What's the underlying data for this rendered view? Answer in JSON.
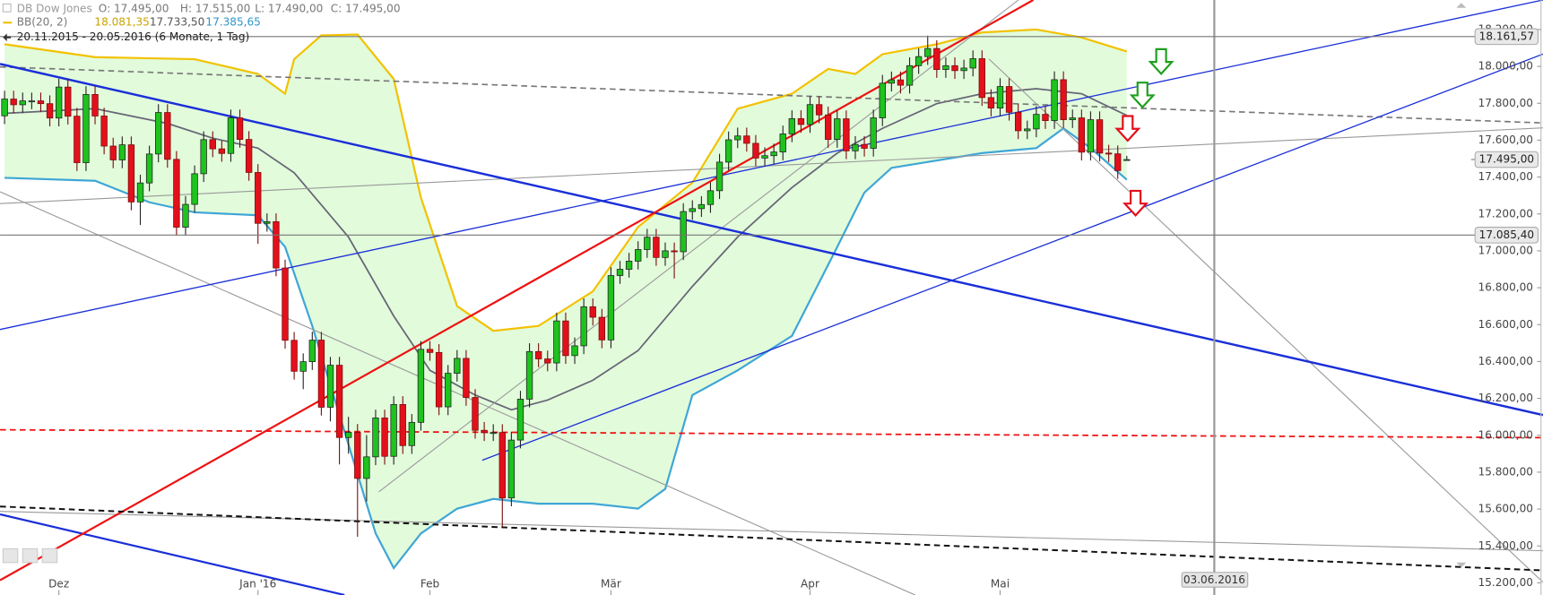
{
  "header": {
    "instrument": "DB Dow Jones",
    "open": "O: 17.495,00",
    "high": "H: 17.515,00",
    "low": "L: 17.490,00",
    "close": "C: 17.495,00",
    "indicator": "BB(20, 2)",
    "bb_upper": "18.081,35",
    "bb_middle": "17.733,50",
    "bb_lower": "17.385,65",
    "range": "20.11.2015 - 20.05.2016 (6 Monate, 1 Tag)"
  },
  "chart_data": {
    "type": "candlestick",
    "categories": [
      null,
      null,
      null,
      null,
      null,
      null,
      "Dez",
      null,
      null,
      null,
      null,
      null,
      null,
      null,
      null,
      null,
      null,
      null,
      null,
      null,
      null,
      null,
      null,
      null,
      null,
      null,
      null,
      null,
      "Jan '16",
      null,
      null,
      null,
      null,
      null,
      null,
      null,
      null,
      null,
      null,
      null,
      null,
      null,
      null,
      null,
      null,
      null,
      null,
      "Feb",
      null,
      null,
      null,
      null,
      null,
      null,
      null,
      null,
      null,
      null,
      null,
      null,
      null,
      null,
      null,
      null,
      null,
      null,
      null,
      "Mär",
      null,
      null,
      null,
      null,
      null,
      null,
      null,
      null,
      null,
      null,
      null,
      null,
      null,
      null,
      null,
      null,
      null,
      null,
      null,
      null,
      null,
      "Apr",
      null,
      null,
      null,
      null,
      null,
      null,
      null,
      null,
      null,
      null,
      null,
      null,
      null,
      null,
      null,
      null,
      null,
      null,
      null,
      null,
      "Mai",
      null,
      null,
      null,
      null,
      null,
      null,
      null,
      null,
      null,
      null,
      null,
      null,
      null,
      null
    ],
    "open": [
      17732,
      17823,
      17792,
      17813,
      17813,
      17798,
      17720,
      17888,
      17730,
      17478,
      17848,
      17731,
      17568,
      17493,
      17575,
      17265,
      17368,
      17525,
      17750,
      17496,
      17128,
      17252,
      17418,
      17603,
      17553,
      17528,
      17721,
      17604,
      17425,
      17149,
      17158,
      16907,
      16515,
      16347,
      16399,
      16516,
      16152,
      16380,
      15988,
      16016,
      15766,
      15883,
      16094,
      15886,
      16167,
      15944,
      16070,
      16466,
      16449,
      16154,
      16336,
      16417,
      16205,
      16027,
      16014,
      16015,
      15660,
      15974,
      16196,
      16454,
      16414,
      16392,
      16620,
      16432,
      16485,
      16697,
      16640,
      16517,
      16866,
      16900,
      16944,
      17007,
      17074,
      16964,
      17000,
      16995,
      17213,
      17229,
      17251,
      17326,
      17481,
      17602,
      17623,
      17583,
      17503,
      17516,
      17536,
      17634,
      17717,
      17685,
      17793,
      17737,
      17604,
      17716,
      17542,
      17577,
      17556,
      17721,
      17909,
      17927,
      17898,
      18004,
      18053,
      18097,
      17983,
      18004,
      17977,
      17991,
      18042,
      17831,
      17774,
      17891,
      17751,
      17651,
      17661,
      17740,
      17706,
      17928,
      17711,
      17721,
      17535,
      17711,
      17530,
      17526,
      17495
    ],
    "high": [
      17868,
      17868,
      17858,
      17858,
      17858,
      17843,
      17933,
      17933,
      17775,
      17893,
      17893,
      17776,
      17613,
      17620,
      17620,
      17413,
      17570,
      17795,
      17795,
      17541,
      17297,
      17463,
      17648,
      17648,
      17598,
      17766,
      17766,
      17649,
      17470,
      17203,
      17203,
      16952,
      16560,
      16444,
      16561,
      16561,
      16425,
      16425,
      16100,
      16061,
      16001,
      16139,
      16139,
      16212,
      16212,
      16115,
      16511,
      16511,
      16494,
      16381,
      16462,
      16462,
      16250,
      16072,
      16060,
      16060,
      16019,
      16241,
      16499,
      16499,
      16459,
      16665,
      16665,
      16530,
      16742,
      16742,
      16685,
      16911,
      16945,
      16989,
      17052,
      17119,
      17119,
      17045,
      17045,
      17258,
      17274,
      17296,
      17371,
      17526,
      17647,
      17668,
      17668,
      17628,
      17561,
      17581,
      17679,
      17762,
      17762,
      17838,
      17838,
      17782,
      17761,
      17761,
      17622,
      17622,
      17766,
      17954,
      17972,
      17972,
      18049,
      18098,
      18167,
      18142,
      18049,
      18049,
      18036,
      18087,
      18087,
      17876,
      17936,
      17936,
      17796,
      17706,
      17785,
      17785,
      17973,
      17973,
      17766,
      17766,
      17756,
      17756,
      17575,
      17571,
      17515
    ],
    "low": [
      17687,
      17747,
      17747,
      17768,
      17753,
      17675,
      17675,
      17685,
      17433,
      17433,
      17686,
      17523,
      17448,
      17448,
      17220,
      17140,
      17323,
      17480,
      17451,
      17083,
      17083,
      17207,
      17373,
      17508,
      17483,
      17483,
      17559,
      17380,
      17038,
      17104,
      16862,
      16470,
      16302,
      16250,
      16354,
      16107,
      16075,
      15842,
      15900,
      15450,
      15640,
      15838,
      15841,
      15841,
      15899,
      15899,
      16025,
      16404,
      16109,
      16109,
      16291,
      16160,
      15982,
      15969,
      15969,
      15503,
      15615,
      15929,
      16151,
      16369,
      16347,
      16347,
      16387,
      16387,
      16440,
      16595,
      16472,
      16472,
      16821,
      16855,
      16899,
      16962,
      16919,
      16919,
      16850,
      16950,
      17168,
      17184,
      17206,
      17281,
      17436,
      17557,
      17538,
      17458,
      17458,
      17471,
      17491,
      17589,
      17640,
      17640,
      17692,
      17559,
      17559,
      17497,
      17497,
      17511,
      17511,
      17676,
      17864,
      17853,
      17853,
      17959,
      18008,
      17938,
      17938,
      17932,
      17932,
      17946,
      17786,
      17729,
      17729,
      17706,
      17606,
      17606,
      17616,
      17661,
      17661,
      17666,
      17666,
      17490,
      17490,
      17485,
      17481,
      17390,
      17490
    ],
    "close": [
      17823,
      17792,
      17813,
      17813,
      17798,
      17720,
      17888,
      17730,
      17478,
      17848,
      17731,
      17568,
      17493,
      17575,
      17265,
      17368,
      17525,
      17750,
      17496,
      17128,
      17252,
      17418,
      17603,
      17553,
      17528,
      17721,
      17604,
      17425,
      17149,
      17158,
      16907,
      16515,
      16347,
      16399,
      16516,
      16152,
      16380,
      15988,
      16016,
      15766,
      15883,
      16094,
      15886,
      16167,
      15944,
      16070,
      16466,
      16449,
      16154,
      16336,
      16417,
      16205,
      16027,
      16014,
      16015,
      15660,
      15974,
      16196,
      16454,
      16414,
      16392,
      16620,
      16432,
      16485,
      16697,
      16640,
      16517,
      16866,
      16900,
      16944,
      17007,
      17074,
      16964,
      17000,
      16995,
      17213,
      17229,
      17251,
      17326,
      17481,
      17602,
      17623,
      17583,
      17503,
      17516,
      17536,
      17634,
      17717,
      17685,
      17793,
      17737,
      17604,
      17716,
      17542,
      17577,
      17556,
      17721,
      17909,
      17927,
      17898,
      18004,
      18053,
      18097,
      17983,
      18004,
      17977,
      17991,
      18042,
      17831,
      17774,
      17891,
      17751,
      17651,
      17661,
      17740,
      17706,
      17928,
      17711,
      17721,
      17535,
      17711,
      17530,
      17526,
      17435,
      17495
    ],
    "up_color": "#1ec31e",
    "down_color": "#e3101c",
    "bollinger": {
      "fill": "#e2fbdb",
      "upper": {
        "color": "#f2c200",
        "x": [
          0,
          10,
          21,
          28,
          31,
          32,
          35,
          39,
          43,
          46,
          50,
          54,
          59,
          65,
          70,
          76,
          81,
          87,
          91,
          94,
          97,
          103,
          108,
          114,
          119,
          124
        ],
        "values": [
          18120,
          18050,
          18039,
          17959,
          17852,
          18039,
          18168,
          18173,
          17932,
          17289,
          16700,
          16566,
          16593,
          16780,
          17129,
          17370,
          17771,
          17852,
          17986,
          17959,
          18066,
          18120,
          18184,
          18200,
          18157,
          18081
        ]
      },
      "middle": {
        "color": "#666677",
        "x": [
          0,
          10,
          18,
          23,
          28,
          32,
          38,
          43,
          47,
          52,
          56,
          60,
          65,
          70,
          76,
          81,
          87,
          92,
          97,
          103,
          108,
          114,
          119,
          124
        ],
        "values": [
          17745,
          17771,
          17691,
          17611,
          17557,
          17423,
          17075,
          16646,
          16352,
          16218,
          16138,
          16191,
          16298,
          16459,
          16807,
          17075,
          17343,
          17530,
          17664,
          17798,
          17852,
          17879,
          17852,
          17734
        ]
      },
      "lower": {
        "color": "#3fa6d6",
        "x": [
          0,
          10,
          16,
          21,
          28,
          31,
          34,
          38,
          41,
          43,
          46,
          50,
          54,
          59,
          65,
          70,
          73,
          76,
          81,
          87,
          92,
          95,
          98,
          108,
          114,
          117,
          120,
          124
        ],
        "values": [
          17396,
          17380,
          17263,
          17209,
          17193,
          17021,
          16593,
          15950,
          15468,
          15280,
          15468,
          15602,
          15655,
          15629,
          15629,
          15602,
          15709,
          16218,
          16352,
          16539,
          17021,
          17316,
          17450,
          17530,
          17557,
          17664,
          17557,
          17386
        ]
      }
    },
    "xlim": [
      -0.5,
      161.5
    ],
    "ylim": [
      15150,
      18360
    ],
    "yticks": [
      {
        "value": 18200,
        "label": "18.200,00"
      },
      {
        "value": 18000,
        "label": "18.000,00"
      },
      {
        "value": 17800,
        "label": "17.800,00"
      },
      {
        "value": 17600,
        "label": "17.600,00"
      },
      {
        "value": 17400,
        "label": "17.400,00"
      },
      {
        "value": 17200,
        "label": "17.200,00"
      },
      {
        "value": 17000,
        "label": "17.000,00"
      },
      {
        "value": 16800,
        "label": "16.800,00"
      },
      {
        "value": 16600,
        "label": "16.600,00"
      },
      {
        "value": 16400,
        "label": "16.400,00"
      },
      {
        "value": 16200,
        "label": "16.200,00"
      },
      {
        "value": 16000,
        "label": "16.000,00"
      },
      {
        "value": 15800,
        "label": "15.800,00"
      },
      {
        "value": 15600,
        "label": "15.600,00"
      },
      {
        "value": 15400,
        "label": "15.400,00"
      },
      {
        "value": 15200,
        "label": "15.200,00"
      }
    ],
    "grid": false,
    "price_lines": [
      {
        "value": 18161.57,
        "label": "18.161,57"
      },
      {
        "value": 17085.4,
        "label": "17.085,40"
      }
    ],
    "last_price": {
      "value": 17495,
      "label": "17.495,00"
    },
    "date_marker": "03.06.2016"
  }
}
